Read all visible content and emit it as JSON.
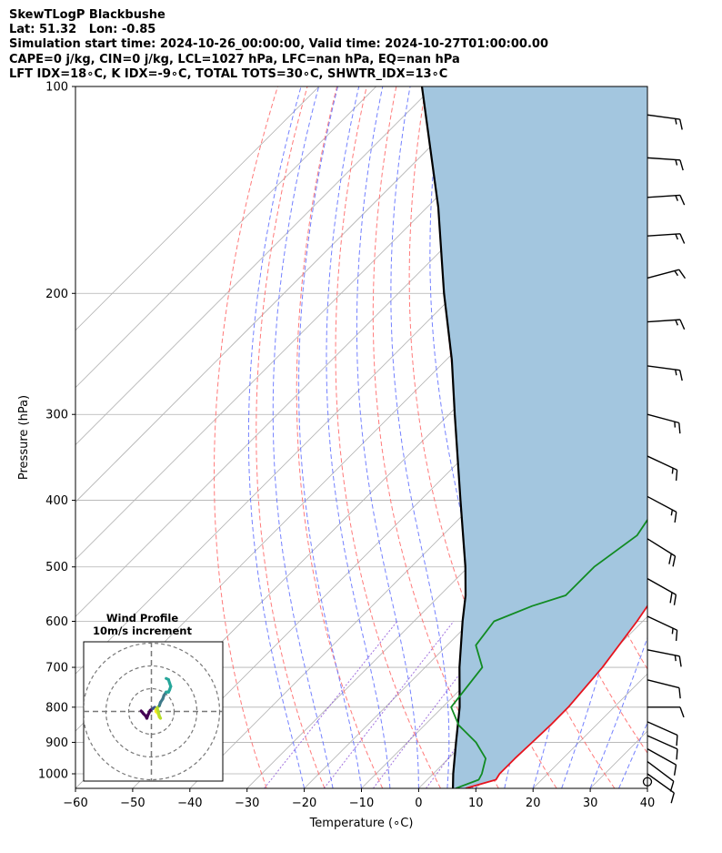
{
  "title_lines": [
    "SkewTLogP Blackbushe",
    "Lat: 51.32   Lon: -0.85",
    "Simulation start time: 2024-10-26_00:00:00, Valid time: 2024-10-27T01:00:00.00",
    "CAPE=0 j/kg, CIN=0 j/kg, LCL=1027 hPa, LFC=nan hPa, EQ=nan hPa",
    "LFT IDX=18∘C, K IDX=-9∘C, TOTAL TOTS=30∘C, SHWTR_IDX=13∘C"
  ],
  "chart_data": {
    "type": "line",
    "subtype": "skew-T log-P",
    "xlabel": "Temperature (∘C)",
    "ylabel": "Pressure (hPa)",
    "xlim": [
      -60,
      40
    ],
    "ylim": [
      1050,
      100
    ],
    "x_ticks": [
      -60,
      -50,
      -40,
      -30,
      -20,
      -10,
      0,
      10,
      20,
      30,
      40
    ],
    "x_tick_labels": [
      "−60",
      "−50",
      "−40",
      "−30",
      "−20",
      "−10",
      "0",
      "10",
      "20",
      "30",
      "40"
    ],
    "y_ticks": [
      1000,
      900,
      800,
      700,
      600,
      500,
      400,
      300,
      200,
      100
    ],
    "y_scale": "log",
    "grid": true,
    "colors": {
      "temperature": "#e6141e",
      "dewpoint": "#118b22",
      "parcel": "#000000",
      "shading": "#a3c6df",
      "dry_adiabat": "#ff6b6b",
      "moist_adiabat": "#5c6bff",
      "mixing_ratio": "#8a4fd6",
      "isotherm": "#b0b0b0"
    },
    "series": [
      {
        "role": "temperature",
        "points": [
          [
            1050,
            8.2
          ],
          [
            1020,
            12.0
          ],
          [
            1000,
            11.6
          ],
          [
            950,
            11.6
          ],
          [
            900,
            11.8
          ],
          [
            850,
            12.0
          ],
          [
            800,
            12.0
          ],
          [
            700,
            11.0
          ],
          [
            600,
            9.0
          ],
          [
            500,
            6.0
          ],
          [
            400,
            -2.0
          ],
          [
            350,
            -7.0
          ],
          [
            300,
            -12.0
          ],
          [
            270,
            -15.8
          ],
          [
            250,
            -17.5
          ],
          [
            220,
            -17.0
          ],
          [
            200,
            -17.0
          ],
          [
            180,
            -19.5
          ],
          [
            160,
            -19.0
          ],
          [
            150,
            -19.5
          ],
          [
            140,
            -21.5
          ],
          [
            130,
            -20.5
          ],
          [
            120,
            -19.5
          ],
          [
            110,
            -17.0
          ],
          [
            100,
            -17.5
          ]
        ]
      },
      {
        "role": "dewpoint",
        "points": [
          [
            1050,
            6.5
          ],
          [
            1020,
            9.0
          ],
          [
            1000,
            8.5
          ],
          [
            950,
            6.5
          ],
          [
            900,
            2.0
          ],
          [
            850,
            -4.0
          ],
          [
            800,
            -8.5
          ],
          [
            700,
            -10.0
          ],
          [
            650,
            -15.0
          ],
          [
            600,
            -16.0
          ],
          [
            570,
            -12.0
          ],
          [
            550,
            -8.0
          ],
          [
            500,
            -8.0
          ],
          [
            450,
            -6.0
          ],
          [
            400,
            -8.0
          ],
          [
            370,
            -6.0
          ],
          [
            340,
            -7.0
          ],
          [
            320,
            -10.0
          ],
          [
            300,
            -17.0
          ],
          [
            290,
            -23.0
          ],
          [
            270,
            -23.0
          ],
          [
            250,
            -21.0
          ],
          [
            220,
            -21.0
          ],
          [
            200,
            -21.0
          ],
          [
            180,
            -22.5
          ],
          [
            170,
            -23.0
          ],
          [
            150,
            -24.0
          ],
          [
            140,
            -24.5
          ],
          [
            130,
            -24.0
          ],
          [
            100,
            -20.0
          ]
        ]
      },
      {
        "role": "parcel",
        "points": [
          [
            1050,
            6.0
          ],
          [
            1000,
            3.5
          ],
          [
            900,
            -1.5
          ],
          [
            800,
            -7.0
          ],
          [
            700,
            -14.0
          ],
          [
            600,
            -21.5
          ],
          [
            550,
            -25.5
          ],
          [
            500,
            -30.5
          ],
          [
            400,
            -43.0
          ],
          [
            300,
            -59.0
          ],
          [
            250,
            -69.0
          ],
          [
            200,
            -82.0
          ],
          [
            150,
            -98.0
          ],
          [
            100,
            -122.0
          ]
        ]
      }
    ],
    "wind_barbs": [
      {
        "p": 1027,
        "u": 0,
        "v": 0,
        "calm": true
      },
      {
        "p": 1000,
        "u": -7,
        "v": 5
      },
      {
        "p": 960,
        "u": -8,
        "v": 6
      },
      {
        "p": 920,
        "u": -9,
        "v": 5
      },
      {
        "p": 880,
        "u": -9,
        "v": 4
      },
      {
        "p": 840,
        "u": -9,
        "v": 4
      },
      {
        "p": 800,
        "u": -10,
        "v": 0
      },
      {
        "p": 730,
        "u": -12,
        "v": 3
      },
      {
        "p": 660,
        "u": -15,
        "v": 3
      },
      {
        "p": 590,
        "u": -15,
        "v": 7
      },
      {
        "p": 520,
        "u": -16,
        "v": 9
      },
      {
        "p": 455,
        "u": -16,
        "v": 10
      },
      {
        "p": 395,
        "u": -15,
        "v": 8
      },
      {
        "p": 345,
        "u": -15,
        "v": 7
      },
      {
        "p": 300,
        "u": -15,
        "v": 4
      },
      {
        "p": 255,
        "u": -15,
        "v": 2
      },
      {
        "p": 220,
        "u": -15,
        "v": -1
      },
      {
        "p": 190,
        "u": -15,
        "v": -4
      },
      {
        "p": 165,
        "u": -15,
        "v": -1
      },
      {
        "p": 145,
        "u": -15,
        "v": -1
      },
      {
        "p": 127,
        "u": -15,
        "v": 1
      },
      {
        "p": 110,
        "u": -15,
        "v": 2
      }
    ],
    "inset": {
      "title_lines": [
        "Wind Profile",
        "10m/s increment"
      ],
      "rings": [
        10,
        20,
        30
      ],
      "hodograph": [
        [
          -4.5,
          0.2
        ],
        [
          -3.5,
          -1.0
        ],
        [
          -2.5,
          -2.0
        ],
        [
          -2.0,
          -3.0
        ],
        [
          -1.5,
          -1.5
        ],
        [
          -0.5,
          0.5
        ],
        [
          0.5,
          1.2
        ],
        [
          1.5,
          1.8
        ],
        [
          2.0,
          1.0
        ],
        [
          2.0,
          0.0
        ],
        [
          3.0,
          -1.0
        ],
        [
          3.5,
          -2.5
        ],
        [
          4.0,
          -3.0
        ],
        [
          3.5,
          -2.0
        ],
        [
          3.0,
          0.0
        ],
        [
          2.5,
          1.5
        ],
        [
          3.5,
          2.5
        ],
        [
          4.0,
          4.0
        ],
        [
          5.0,
          5.5
        ],
        [
          5.5,
          7.0
        ],
        [
          6.5,
          8.5
        ],
        [
          7.5,
          8.5
        ],
        [
          8.0,
          9.5
        ],
        [
          8.5,
          11.0
        ],
        [
          8.0,
          12.5
        ],
        [
          7.5,
          14.0
        ],
        [
          6.5,
          14.5
        ]
      ]
    }
  }
}
